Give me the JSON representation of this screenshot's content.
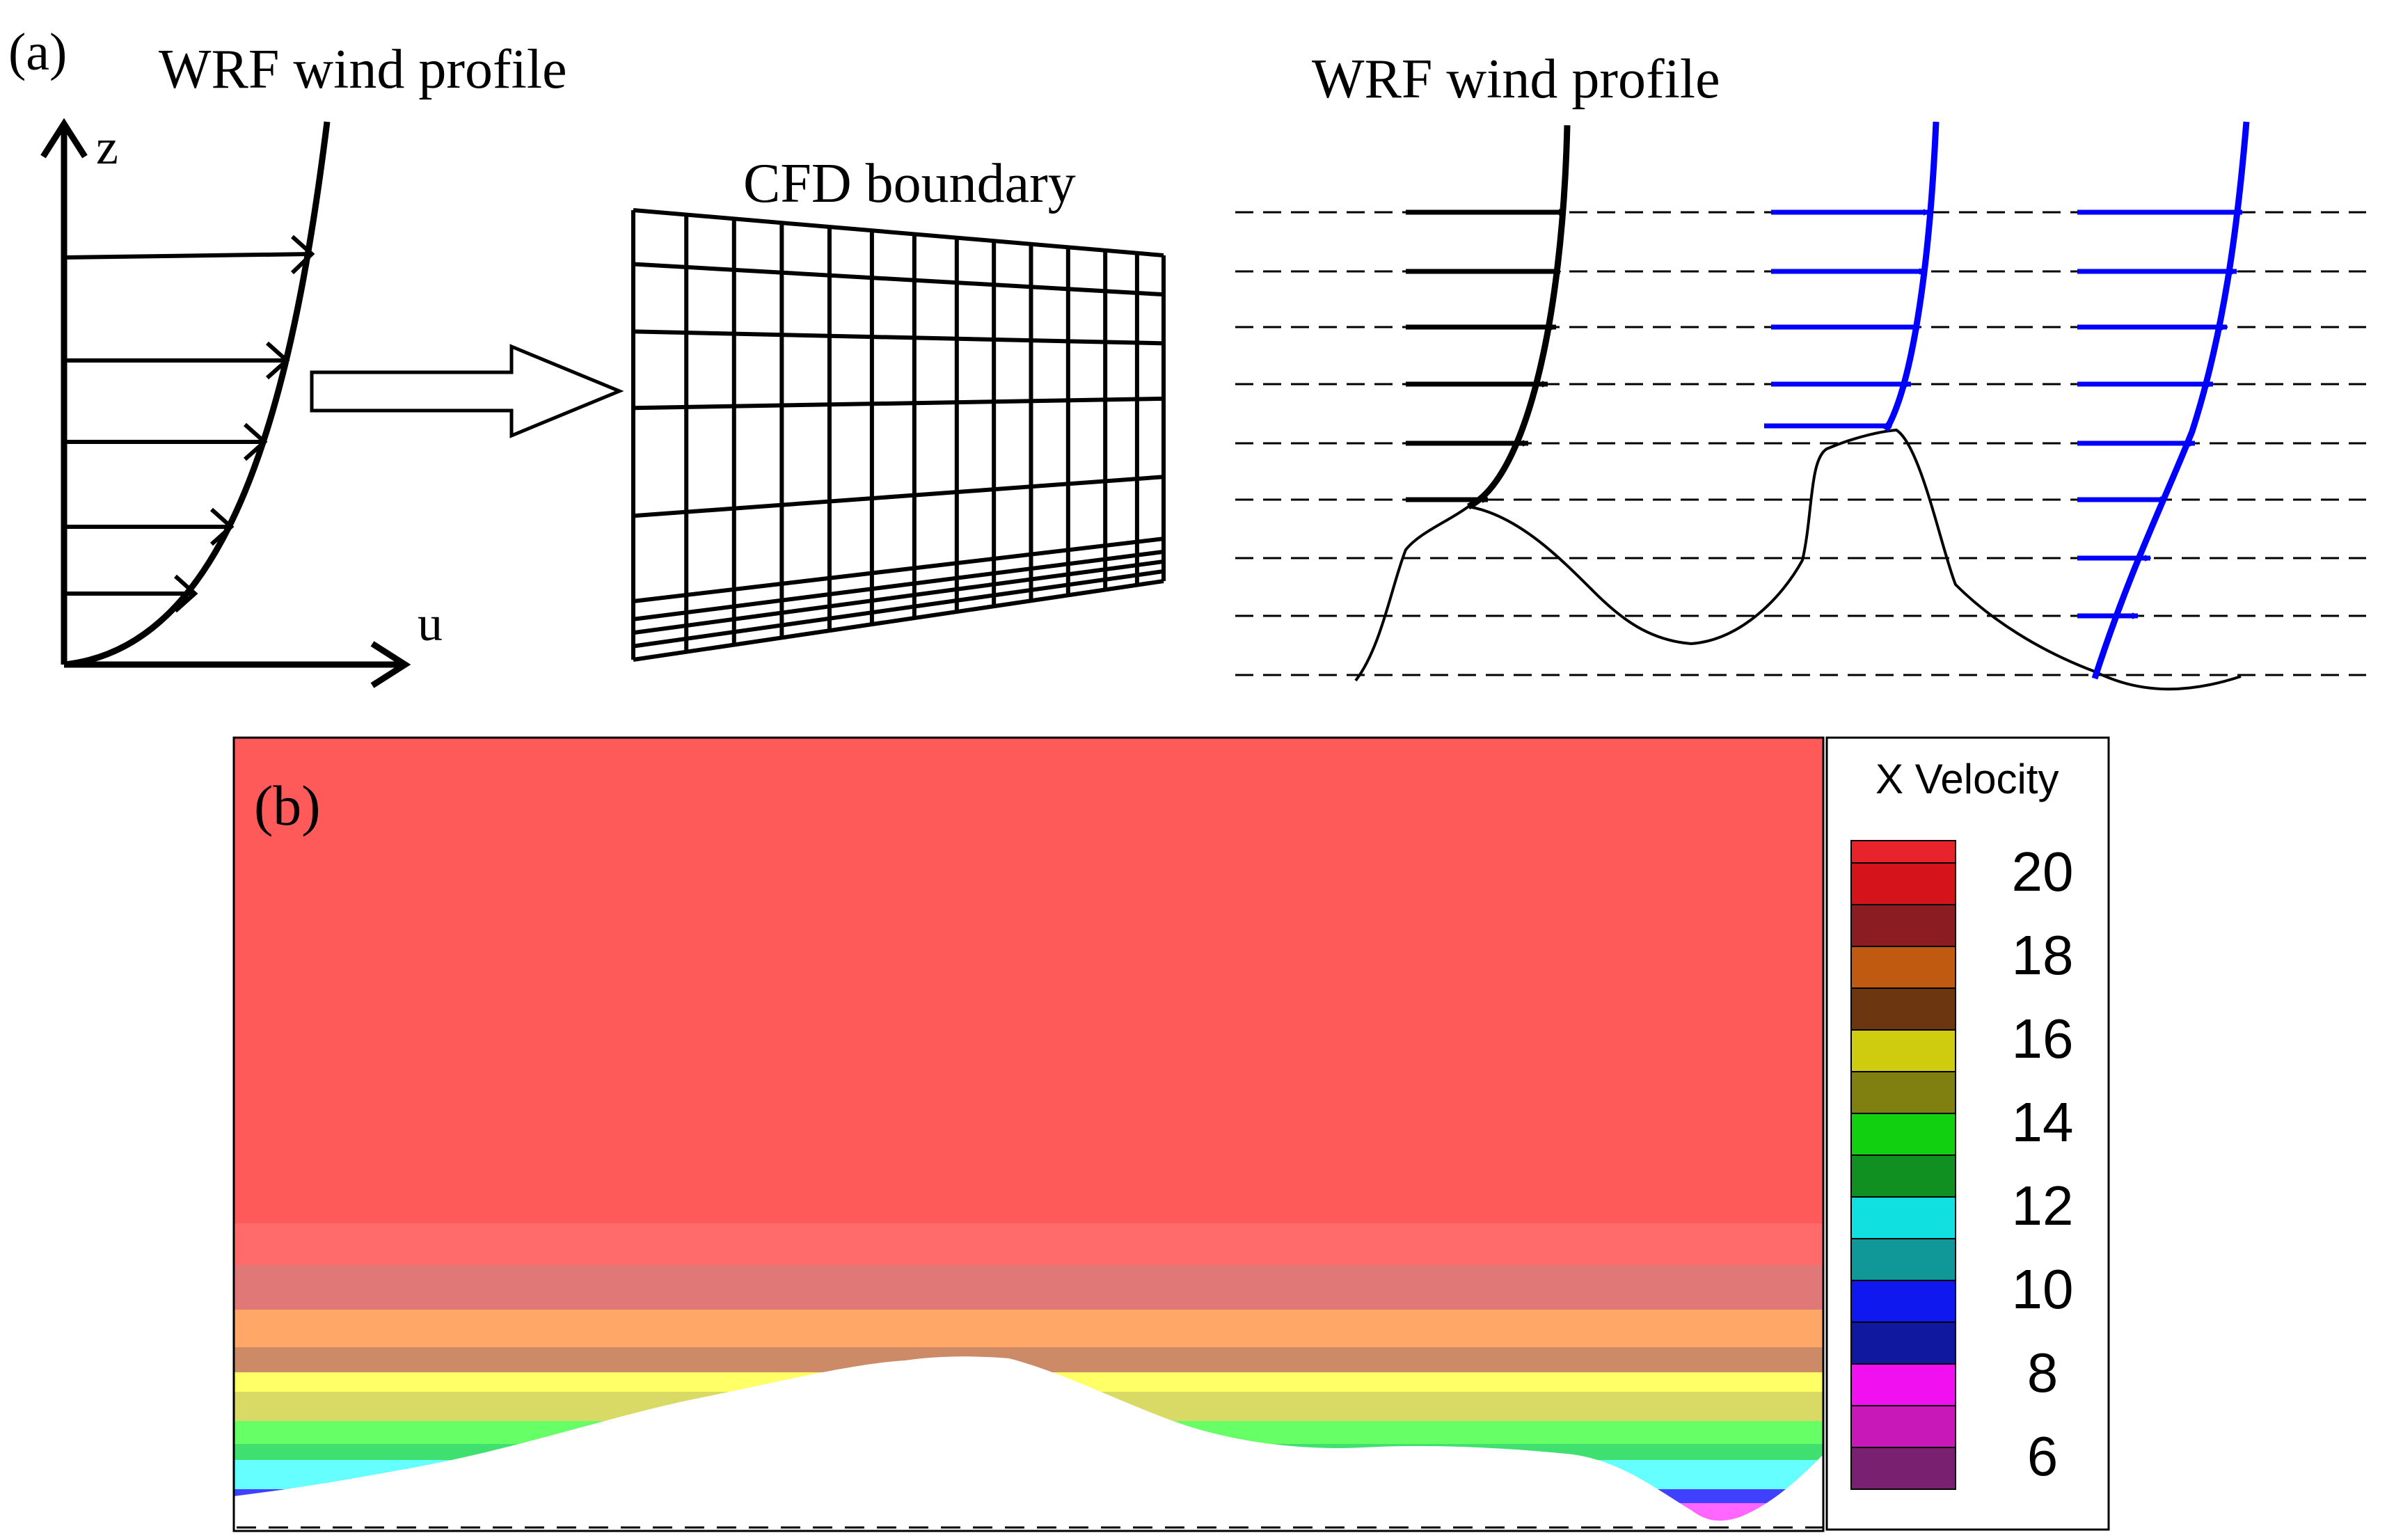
{
  "panel_a": {
    "label": "(a)",
    "profile_title_left": "WRF wind profile",
    "axis_z": "z",
    "axis_u": "u",
    "cfd_title": "CFD boundary",
    "profile_title_right": "WRF wind profile",
    "colors": {
      "black_profile": "#000000",
      "blue_profile": "#0000ff"
    }
  },
  "panel_b": {
    "label": "(b)",
    "legend_title": "X Velocity",
    "legend_ticks": [
      "20",
      "18",
      "16",
      "14",
      "12",
      "10",
      "8",
      "6"
    ],
    "color_levels": [
      {
        "value": 20.5,
        "color": "#e8232b"
      },
      {
        "value": 19.5,
        "color": "#d4131b"
      },
      {
        "value": 18.5,
        "color": "#8b1c21"
      },
      {
        "value": 17.5,
        "color": "#bf5a10"
      },
      {
        "value": 16.5,
        "color": "#6b3610"
      },
      {
        "value": 15.5,
        "color": "#cfcc10"
      },
      {
        "value": 14.5,
        "color": "#808010"
      },
      {
        "value": 13.5,
        "color": "#10d010"
      },
      {
        "value": 12.5,
        "color": "#109020"
      },
      {
        "value": 11.5,
        "color": "#10e0e0"
      },
      {
        "value": 10.5,
        "color": "#109898"
      },
      {
        "value": 9.5,
        "color": "#1018f0"
      },
      {
        "value": 8.5,
        "color": "#1018a0"
      },
      {
        "value": 7.5,
        "color": "#f010f0"
      },
      {
        "value": 6.5,
        "color": "#c818b8"
      },
      {
        "value": 5.5,
        "color": "#7a2070"
      }
    ],
    "field_bands": [
      {
        "color": "#ff5a5a"
      },
      {
        "color": "#ff6b6b"
      },
      {
        "color": "#e07878"
      },
      {
        "color": "#ffa766"
      },
      {
        "color": "#cc8a66"
      },
      {
        "color": "#ffff66"
      },
      {
        "color": "#d9d966"
      },
      {
        "color": "#66ff66"
      },
      {
        "color": "#40e070"
      },
      {
        "color": "#66ffff"
      },
      {
        "color": "#4040ff"
      },
      {
        "color": "#ff66ff"
      }
    ]
  }
}
